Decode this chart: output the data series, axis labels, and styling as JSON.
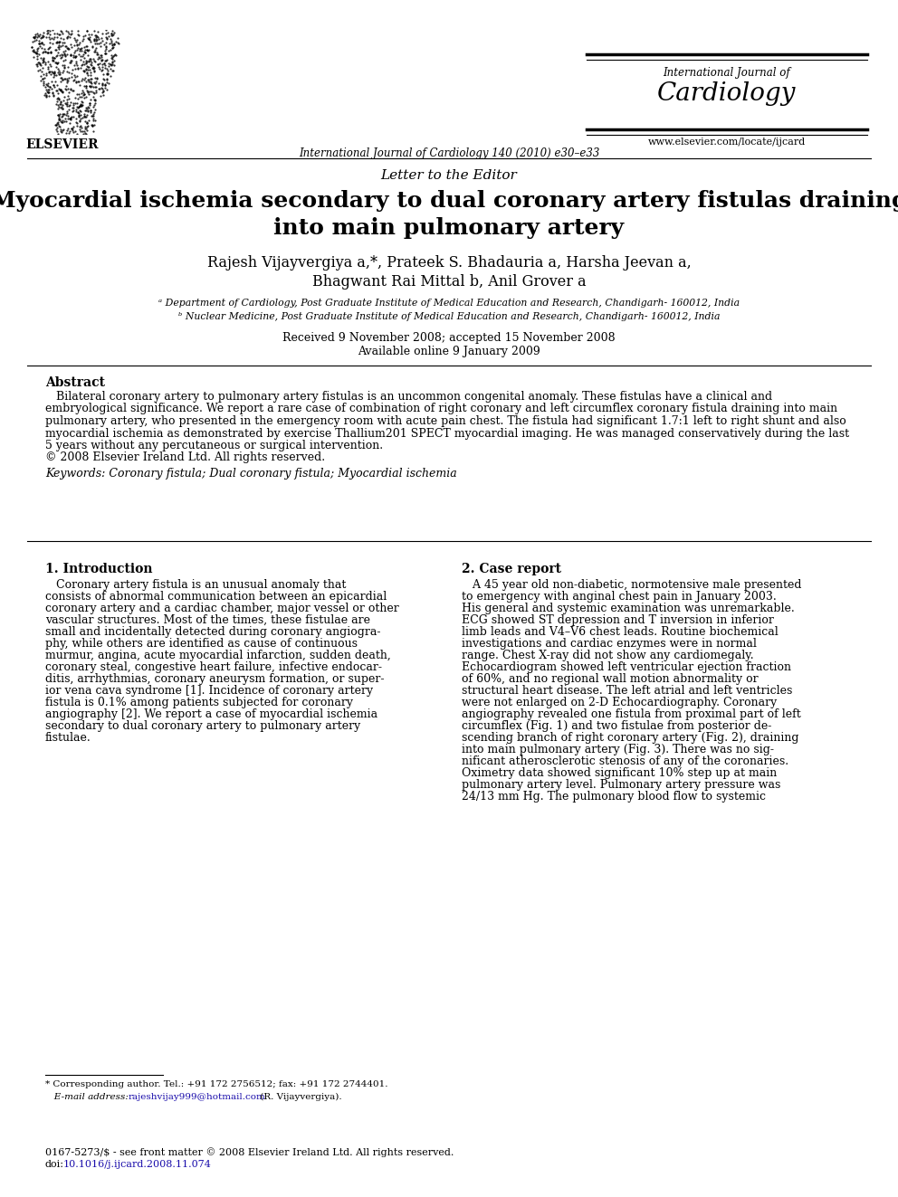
{
  "background_color": "#ffffff",
  "journal_name_small": "International Journal of",
  "journal_name_large": "Cardiology",
  "journal_url": "www.elsevier.com/locate/ijcard",
  "journal_citation": "International Journal of Cardiology 140 (2010) e30–e33",
  "elsevier_text": "ELSEVIER",
  "letter_label": "Letter to the Editor",
  "title_line1": "Myocardial ischemia secondary to dual coronary artery fistulas draining",
  "title_line2": "into main pulmonary artery",
  "authors_line1": "Rajesh Vijayvergiya a,*, Prateek S. Bhadauria a, Harsha Jeevan a,",
  "authors_line2": "Bhagwant Rai Mittal b, Anil Grover a",
  "affiliation_a": "ᵃ Department of Cardiology, Post Graduate Institute of Medical Education and Research, Chandigarh- 160012, India",
  "affiliation_b": "ᵇ Nuclear Medicine, Post Graduate Institute of Medical Education and Research, Chandigarh- 160012, India",
  "received_text": "Received 9 November 2008; accepted 15 November 2008",
  "available_text": "Available online 9 January 2009",
  "abstract_title": "Abstract",
  "abstract_body_lines": [
    "   Bilateral coronary artery to pulmonary artery fistulas is an uncommon congenital anomaly. These fistulas have a clinical and",
    "embryological significance. We report a rare case of combination of right coronary and left circumflex coronary fistula draining into main",
    "pulmonary artery, who presented in the emergency room with acute pain chest. The fistula had significant 1.7:1 left to right shunt and also",
    "myocardial ischemia as demonstrated by exercise Thallium201 SPECT myocardial imaging. He was managed conservatively during the last",
    "5 years without any percutaneous or surgical intervention.",
    "© 2008 Elsevier Ireland Ltd. All rights reserved."
  ],
  "keywords_line": "Keywords: Coronary fistula; Dual coronary fistula; Myocardial ischemia",
  "section1_title": "1. Introduction",
  "section1_lines": [
    "   Coronary artery fistula is an unusual anomaly that",
    "consists of abnormal communication between an epicardial",
    "coronary artery and a cardiac chamber, major vessel or other",
    "vascular structures. Most of the times, these fistulae are",
    "small and incidentally detected during coronary angiogra-",
    "phy, while others are identified as cause of continuous",
    "murmur, angina, acute myocardial infarction, sudden death,",
    "coronary steal, congestive heart failure, infective endocar-",
    "ditis, arrhythmias, coronary aneurysm formation, or super-",
    "ior vena cava syndrome [1]. Incidence of coronary artery",
    "fistula is 0.1% among patients subjected for coronary",
    "angiography [2]. We report a case of myocardial ischemia",
    "secondary to dual coronary artery to pulmonary artery",
    "fistulae."
  ],
  "section2_title": "2. Case report",
  "section2_lines": [
    "   A 45 year old non-diabetic, normotensive male presented",
    "to emergency with anginal chest pain in January 2003.",
    "His general and systemic examination was unremarkable.",
    "ECG showed ST depression and T inversion in inferior",
    "limb leads and V4–V6 chest leads. Routine biochemical",
    "investigations and cardiac enzymes were in normal",
    "range. Chest X-ray did not show any cardiomegaly.",
    "Echocardiogram showed left ventricular ejection fraction",
    "of 60%, and no regional wall motion abnormality or",
    "structural heart disease. The left atrial and left ventricles",
    "were not enlarged on 2-D Echocardiography. Coronary",
    "angiography revealed one fistula from proximal part of left",
    "circumflex (Fig. 1) and two fistulae from posterior de-",
    "scending branch of right coronary artery (Fig. 2), draining",
    "into main pulmonary artery (Fig. 3). There was no sig-",
    "nificant atherosclerotic stenosis of any of the coronaries.",
    "Oximetry data showed significant 10% step up at main",
    "pulmonary artery level. Pulmonary artery pressure was",
    "24/13 mm Hg. The pulmonary blood flow to systemic"
  ],
  "footnote_line1": "* Corresponding author. Tel.: +91 172 2756512; fax: +91 172 2744401.",
  "footnote_line2_pre": "   E-mail address: ",
  "footnote_email": "rajeshvijay999@hotmail.com",
  "footnote_line2_post": " (R. Vijayvergiya).",
  "footer_copyright": "0167-5273/$ - see front matter © 2008 Elsevier Ireland Ltd. All rights reserved.",
  "footer_doi_pre": "doi:",
  "footer_doi": "10.1016/j.ijcard.2008.11.074"
}
